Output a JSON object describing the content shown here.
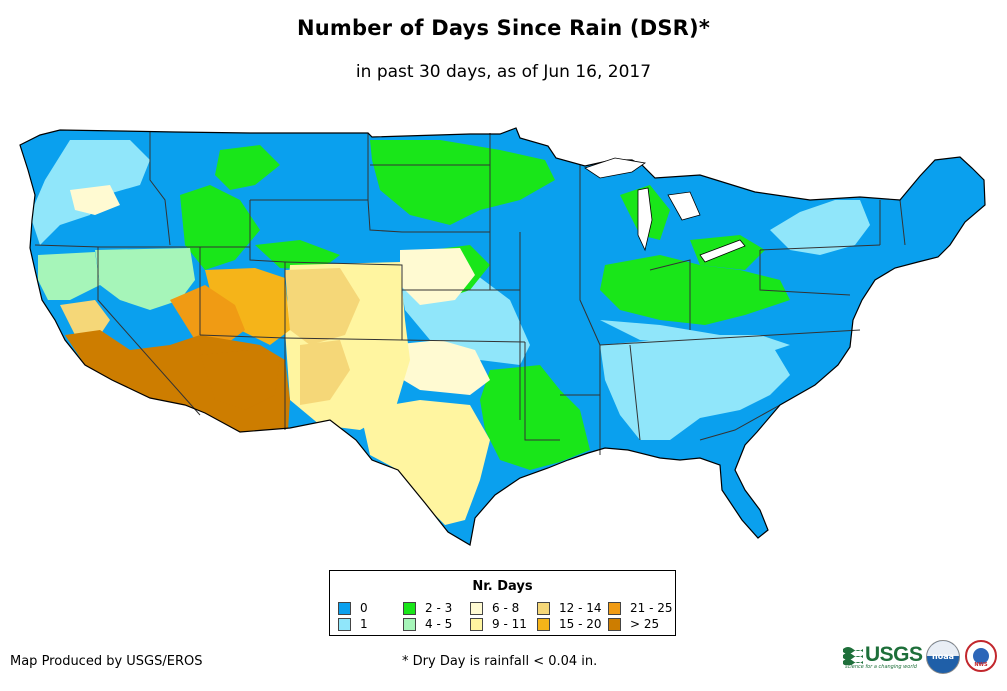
{
  "header": {
    "title": "Number of Days Since Rain (DSR)*",
    "subtitle": "in past 30 days, as of Jun 16, 2017"
  },
  "legend": {
    "title": "Nr. Days",
    "items": [
      {
        "label": "0",
        "color": "#0aa0ee"
      },
      {
        "label": "1",
        "color": "#90e6fa"
      },
      {
        "label": "2 - 3",
        "color": "#19e619"
      },
      {
        "label": "4 - 5",
        "color": "#a6f5b9"
      },
      {
        "label": "6 - 8",
        "color": "#fffad2"
      },
      {
        "label": "9 - 11",
        "color": "#fff5a0"
      },
      {
        "label": "12 - 14",
        "color": "#f5d778"
      },
      {
        "label": "15 - 20",
        "color": "#f5b419"
      },
      {
        "label": "21 - 25",
        "color": "#f09b14"
      },
      {
        "label": "> 25",
        "color": "#cd7d00"
      }
    ]
  },
  "map": {
    "region": "Contiguous United States",
    "boundary_color": "#000000",
    "state_line_color": "#333333"
  },
  "footer": {
    "credit": "Map Produced by USGS/EROS",
    "note": "* Dry Day is rainfall < 0.04 in."
  },
  "logos": {
    "usgs_text": "USGS",
    "usgs_tagline": "science for a changing world",
    "noaa_text": "noaa",
    "nws_text": "NWS"
  }
}
